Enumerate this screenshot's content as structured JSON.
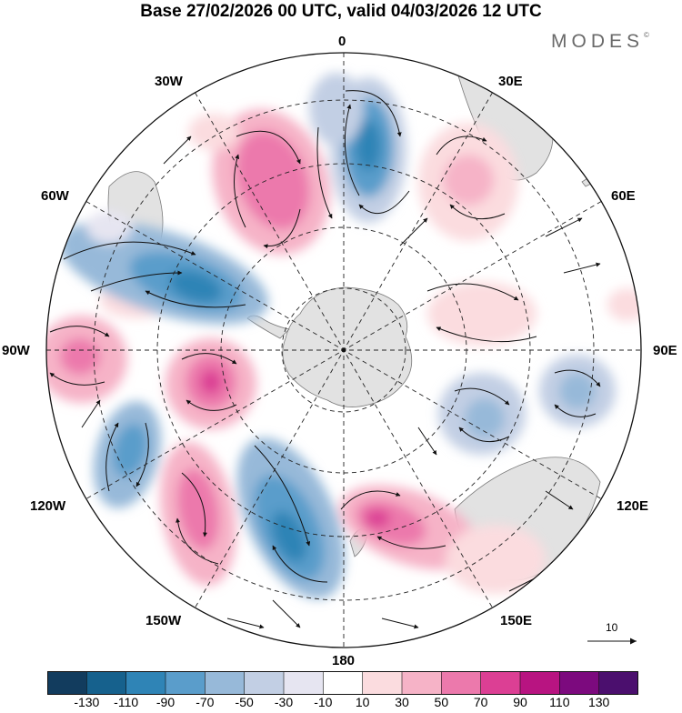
{
  "title": "Base 27/02/2026 00 UTC, valid 04/03/2026 12 UTC",
  "brand": {
    "name": "MODES",
    "mark": "©"
  },
  "map": {
    "projection": "South polar stereographic",
    "longitude_labels": {
      "top": "0",
      "top_left": "30W",
      "top_right": "30E",
      "left_upper": "60W",
      "right_upper": "60E",
      "left": "90W",
      "right": "90E",
      "left_lower": "120W",
      "right_lower": "120E",
      "bottom_left": "150W",
      "bottom_right": "150E",
      "bottom": "180"
    },
    "colors": {
      "land": "#e2e2e2",
      "coast": "#7a7a7a",
      "grid": "#222222"
    }
  },
  "vector_reference": {
    "label": "10"
  },
  "colorbar": {
    "labels": [
      "-130",
      "-110",
      "-90",
      "-70",
      "-50",
      "-30",
      "-10",
      "10",
      "30",
      "50",
      "70",
      "90",
      "110",
      "130"
    ],
    "colors": [
      "#123c5e",
      "#16618d",
      "#2f84b6",
      "#5a9dcb",
      "#97b9d9",
      "#c2cfe4",
      "#e6e5f1",
      "#ffffff",
      "#fbdcdf",
      "#f6b3c7",
      "#ec79ac",
      "#dc3f94",
      "#b81481",
      "#7c0a7e",
      "#4b0f6e"
    ]
  }
}
